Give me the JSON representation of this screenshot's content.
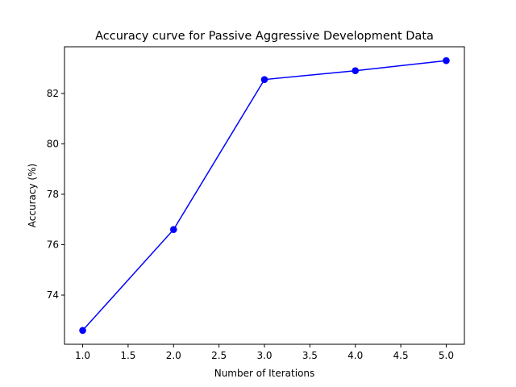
{
  "chart_data": {
    "type": "line",
    "title": "Accuracy curve for Passive Aggressive Development Data",
    "xlabel": "Number of Iterations",
    "ylabel": "Accuracy (%)",
    "x": [
      1,
      2,
      3,
      4,
      5
    ],
    "series": [
      {
        "values": [
          72.6,
          76.6,
          82.55,
          82.9,
          83.3
        ],
        "color": "#0000ff",
        "marker": "circle"
      }
    ],
    "xlim": [
      0.8,
      5.2
    ],
    "ylim": [
      72.05,
      83.85
    ],
    "xticks": [
      1.0,
      1.5,
      2.0,
      2.5,
      3.0,
      3.5,
      4.0,
      4.5,
      5.0
    ],
    "xtick_labels": [
      "1.0",
      "1.5",
      "2.0",
      "2.5",
      "3.0",
      "3.5",
      "4.0",
      "4.5",
      "5.0"
    ],
    "yticks": [
      74,
      76,
      78,
      80,
      82
    ],
    "ytick_labels": [
      "74",
      "76",
      "78",
      "80",
      "82"
    ],
    "grid": false,
    "legend": "none"
  }
}
